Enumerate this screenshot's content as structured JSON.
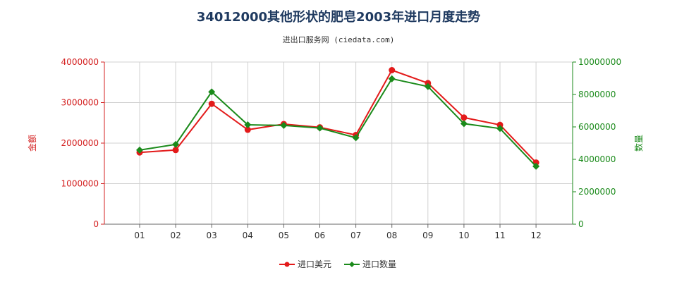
{
  "title": "34012000其他形状的肥皂2003年进口月度走势",
  "subtitle": "进出口服务网 (ciedata.com)",
  "chart_data": {
    "type": "line",
    "categories": [
      "01",
      "02",
      "03",
      "04",
      "05",
      "06",
      "07",
      "08",
      "09",
      "10",
      "11",
      "12"
    ],
    "left_axis": {
      "label": "金额",
      "ylim": [
        0,
        4000000
      ],
      "ticks": [
        "0",
        "1000000",
        "2000000",
        "3000000",
        "4000000"
      ],
      "color": "#d42020"
    },
    "right_axis": {
      "label": "数量",
      "ylim": [
        0,
        10000000
      ],
      "ticks": [
        "0",
        "2000000",
        "4000000",
        "6000000",
        "8000000",
        "10000000"
      ],
      "color": "#1a8a1a"
    },
    "series": [
      {
        "name": "进口美元",
        "axis": "left",
        "color": "#e31a1a",
        "marker": "circle",
        "values": [
          1770000,
          1830000,
          2970000,
          2330000,
          2470000,
          2390000,
          2200000,
          3800000,
          3480000,
          2630000,
          2450000,
          1520000
        ]
      },
      {
        "name": "进口数量",
        "axis": "right",
        "color": "#1a8a1a",
        "marker": "diamond",
        "values": [
          4570000,
          4920000,
          8160000,
          6130000,
          6090000,
          5930000,
          5330000,
          8970000,
          8490000,
          6200000,
          5900000,
          3570000
        ]
      }
    ],
    "grid": true,
    "legend_position": "bottom-center"
  }
}
